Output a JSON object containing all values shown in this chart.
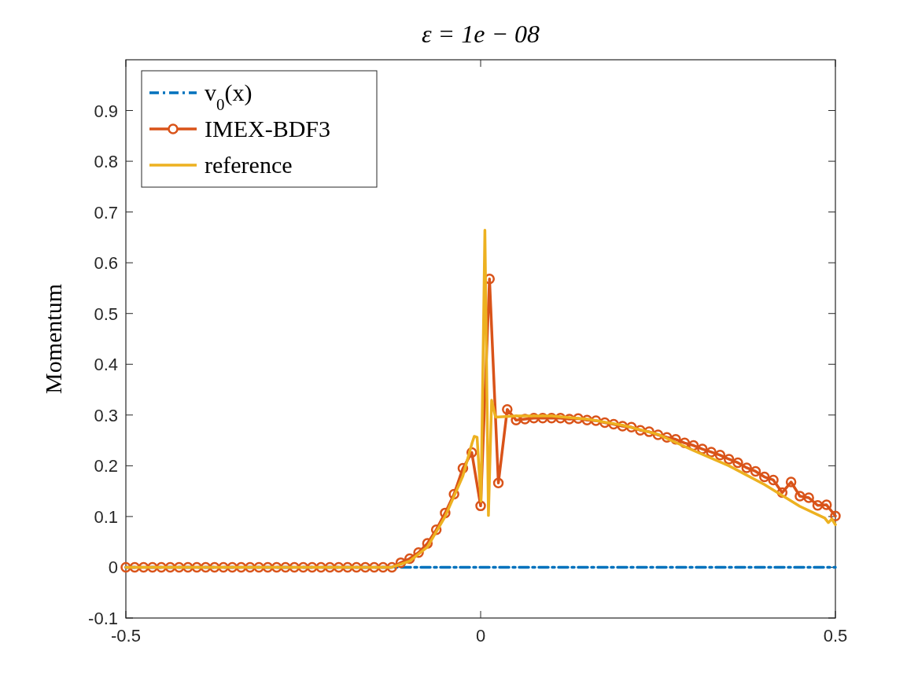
{
  "chart_data": {
    "type": "line",
    "title": "ε = 1e − 08",
    "ylabel": "Momentum",
    "xlim": [
      -0.5,
      0.5
    ],
    "xticks": [
      -0.5,
      0,
      0.5
    ],
    "ylim": [
      -0.1,
      1
    ],
    "yticks": [
      -0.1,
      0,
      0.1,
      0.2,
      0.3,
      0.4,
      0.5,
      0.6,
      0.7,
      0.8,
      0.9
    ],
    "grid": false,
    "legend": "top left",
    "series": [
      {
        "name": "v$_{0}$(x)",
        "color": "#0072bd",
        "line_style": "dashed",
        "marker": "none",
        "x": [
          -0.5,
          0.5
        ],
        "values": [
          0,
          0
        ]
      },
      {
        "name": "IMEX-BDF3",
        "color": "#d95319",
        "line_style": "solid",
        "marker": "circle",
        "x": [
          -0.5,
          -0.4875,
          -0.475,
          -0.4625,
          -0.45,
          -0.4375,
          -0.425,
          -0.4125,
          -0.4,
          -0.3875,
          -0.375,
          -0.3625,
          -0.35,
          -0.3375,
          -0.325,
          -0.3125,
          -0.3,
          -0.2875,
          -0.275,
          -0.2625,
          -0.25,
          -0.2375,
          -0.225,
          -0.2125,
          -0.2,
          -0.1875,
          -0.175,
          -0.1625,
          -0.15,
          -0.1375,
          -0.125,
          -0.1125,
          -0.1,
          -0.0875,
          -0.075,
          -0.0625,
          -0.05,
          -0.0375,
          -0.025,
          -0.0125,
          0,
          0.0125,
          0.025,
          0.0375,
          0.05,
          0.0625,
          0.075,
          0.0875,
          0.1,
          0.1125,
          0.125,
          0.1375,
          0.15,
          0.1625,
          0.175,
          0.1875,
          0.2,
          0.2125,
          0.225,
          0.2375,
          0.25,
          0.2625,
          0.275,
          0.2875,
          0.3,
          0.3125,
          0.325,
          0.3375,
          0.35,
          0.3625,
          0.375,
          0.3875,
          0.4,
          0.4125,
          0.425,
          0.4375,
          0.45,
          0.4625,
          0.475,
          0.4875,
          0.5
        ],
        "values": [
          0,
          0,
          0,
          0,
          0,
          0,
          0,
          0,
          0,
          0,
          0,
          0,
          0,
          0,
          0,
          0,
          0,
          0,
          0,
          0,
          0,
          0,
          0,
          0,
          0,
          0,
          0,
          0,
          0,
          0,
          0,
          0.009,
          0.017,
          0.029,
          0.047,
          0.074,
          0.107,
          0.144,
          0.195,
          0.226,
          0.121,
          0.568,
          0.166,
          0.311,
          0.29,
          0.292,
          0.294,
          0.294,
          0.294,
          0.294,
          0.292,
          0.293,
          0.29,
          0.289,
          0.285,
          0.282,
          0.278,
          0.276,
          0.27,
          0.267,
          0.261,
          0.256,
          0.252,
          0.245,
          0.24,
          0.233,
          0.227,
          0.221,
          0.213,
          0.206,
          0.196,
          0.189,
          0.178,
          0.172,
          0.147,
          0.168,
          0.14,
          0.137,
          0.122,
          0.123,
          0.101
        ]
      },
      {
        "name": "reference",
        "color": "#edb120",
        "line_style": "solid",
        "marker": "none",
        "x": [
          -0.5,
          -0.125,
          -0.1,
          -0.075,
          -0.05,
          -0.025,
          -0.012,
          -0.009,
          -0.005,
          0.0005,
          0.006,
          0.011,
          0.0155,
          0.021,
          0.05,
          0.1,
          0.15,
          0.2,
          0.25,
          0.3,
          0.35,
          0.4,
          0.45,
          0.485,
          0.49,
          0.495,
          0.5
        ],
        "values": [
          0,
          0,
          0.012,
          0.04,
          0.1,
          0.18,
          0.245,
          0.258,
          0.256,
          0.13,
          0.664,
          0.102,
          0.329,
          0.296,
          0.298,
          0.298,
          0.292,
          0.28,
          0.262,
          0.23,
          0.2,
          0.163,
          0.12,
          0.097,
          0.088,
          0.095,
          0.084
        ]
      }
    ]
  }
}
